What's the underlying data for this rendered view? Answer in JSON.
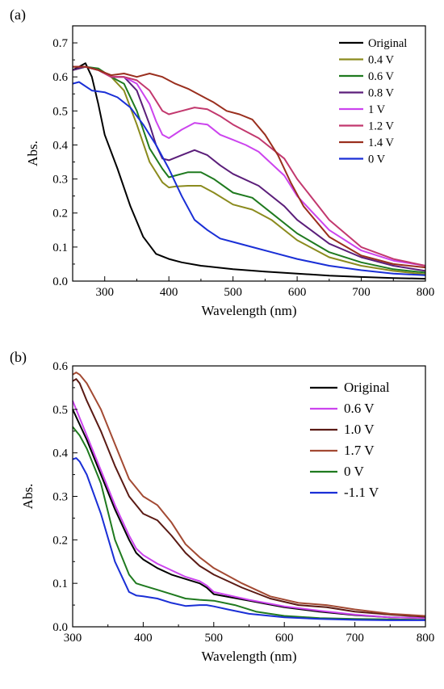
{
  "chart_data": [
    {
      "panel_label": "(a)",
      "type": "line",
      "xlabel": "Wavelength (nm)",
      "ylabel": "Abs.",
      "xlim": [
        250,
        800
      ],
      "ylim": [
        0,
        0.75
      ],
      "xticks": [
        300,
        400,
        500,
        600,
        700,
        800
      ],
      "yticks": [
        0.0,
        0.1,
        0.2,
        0.3,
        0.4,
        0.5,
        0.6,
        0.7
      ],
      "xtick_labels": [
        "300",
        "400",
        "500",
        "600",
        "700",
        "800"
      ],
      "ytick_labels": [
        "0.0",
        "0.1",
        "0.2",
        "0.3",
        "0.4",
        "0.5",
        "0.6",
        "0.7"
      ],
      "grid": false,
      "legend_position": "top-right",
      "series": [
        {
          "name": "Original",
          "color": "#000000",
          "x": [
            250,
            260,
            270,
            280,
            290,
            300,
            320,
            340,
            360,
            380,
            400,
            420,
            450,
            500,
            550,
            600,
            650,
            700,
            750,
            800
          ],
          "y": [
            0.62,
            0.63,
            0.64,
            0.6,
            0.52,
            0.43,
            0.33,
            0.22,
            0.13,
            0.08,
            0.065,
            0.055,
            0.045,
            0.035,
            0.028,
            0.022,
            0.016,
            0.012,
            0.009,
            0.007
          ]
        },
        {
          "name": "0.4 V",
          "color": "#8b8b1e",
          "x": [
            250,
            270,
            290,
            310,
            330,
            350,
            370,
            390,
            400,
            410,
            430,
            450,
            470,
            500,
            530,
            560,
            600,
            650,
            700,
            750,
            800
          ],
          "y": [
            0.62,
            0.63,
            0.62,
            0.6,
            0.56,
            0.46,
            0.35,
            0.29,
            0.275,
            0.278,
            0.28,
            0.28,
            0.26,
            0.225,
            0.21,
            0.18,
            0.12,
            0.07,
            0.045,
            0.03,
            0.02
          ]
        },
        {
          "name": "0.6 V",
          "color": "#1f7a1f",
          "x": [
            250,
            270,
            290,
            310,
            330,
            350,
            370,
            390,
            400,
            410,
            430,
            450,
            470,
            500,
            530,
            560,
            600,
            650,
            700,
            750,
            800
          ],
          "y": [
            0.62,
            0.63,
            0.625,
            0.6,
            0.58,
            0.5,
            0.39,
            0.33,
            0.305,
            0.31,
            0.32,
            0.32,
            0.3,
            0.26,
            0.245,
            0.2,
            0.14,
            0.085,
            0.055,
            0.035,
            0.025
          ]
        },
        {
          "name": "0.8 V",
          "color": "#5b1e7a",
          "x": [
            250,
            270,
            290,
            310,
            330,
            350,
            370,
            380,
            390,
            400,
            420,
            440,
            460,
            480,
            500,
            540,
            580,
            600,
            650,
            700,
            750,
            800
          ],
          "y": [
            0.62,
            0.63,
            0.62,
            0.6,
            0.6,
            0.56,
            0.46,
            0.4,
            0.36,
            0.355,
            0.37,
            0.385,
            0.37,
            0.34,
            0.315,
            0.28,
            0.22,
            0.18,
            0.11,
            0.07,
            0.045,
            0.03
          ]
        },
        {
          "name": "1 V",
          "color": "#cc44ee",
          "x": [
            250,
            270,
            290,
            310,
            330,
            350,
            370,
            380,
            390,
            400,
            420,
            440,
            460,
            480,
            500,
            520,
            540,
            580,
            600,
            650,
            700,
            750,
            800
          ],
          "y": [
            0.63,
            0.63,
            0.62,
            0.6,
            0.6,
            0.58,
            0.52,
            0.47,
            0.43,
            0.42,
            0.445,
            0.465,
            0.46,
            0.43,
            0.415,
            0.4,
            0.38,
            0.31,
            0.25,
            0.15,
            0.09,
            0.06,
            0.045
          ]
        },
        {
          "name": "1.2 V",
          "color": "#c2386e",
          "x": [
            250,
            270,
            290,
            310,
            330,
            350,
            370,
            380,
            390,
            400,
            420,
            440,
            460,
            480,
            500,
            520,
            540,
            580,
            600,
            650,
            700,
            750,
            800
          ],
          "y": [
            0.63,
            0.63,
            0.62,
            0.6,
            0.6,
            0.59,
            0.56,
            0.53,
            0.5,
            0.49,
            0.5,
            0.51,
            0.505,
            0.485,
            0.46,
            0.44,
            0.42,
            0.36,
            0.3,
            0.18,
            0.1,
            0.065,
            0.045
          ]
        },
        {
          "name": "1.4 V",
          "color": "#9a2f1e",
          "x": [
            250,
            270,
            290,
            310,
            330,
            350,
            370,
            390,
            410,
            430,
            450,
            470,
            490,
            510,
            530,
            550,
            570,
            590,
            610,
            650,
            700,
            750,
            800
          ],
          "y": [
            0.63,
            0.63,
            0.62,
            0.605,
            0.61,
            0.6,
            0.61,
            0.6,
            0.58,
            0.565,
            0.545,
            0.525,
            0.5,
            0.49,
            0.475,
            0.43,
            0.37,
            0.29,
            0.22,
            0.13,
            0.075,
            0.05,
            0.04
          ]
        },
        {
          "name": "0 V",
          "color": "#1a2fd6",
          "x": [
            250,
            260,
            280,
            300,
            320,
            340,
            360,
            380,
            400,
            410,
            420,
            440,
            460,
            480,
            500,
            530,
            560,
            600,
            650,
            700,
            750,
            800
          ],
          "y": [
            0.58,
            0.585,
            0.56,
            0.555,
            0.54,
            0.51,
            0.46,
            0.4,
            0.33,
            0.29,
            0.25,
            0.18,
            0.15,
            0.125,
            0.115,
            0.1,
            0.085,
            0.065,
            0.045,
            0.032,
            0.022,
            0.017
          ]
        }
      ]
    },
    {
      "panel_label": "(b)",
      "type": "line",
      "xlabel": "Wavelength (nm)",
      "ylabel": "Abs.",
      "xlim": [
        300,
        800
      ],
      "ylim": [
        0,
        0.6
      ],
      "xticks": [
        300,
        400,
        500,
        600,
        700,
        800
      ],
      "yticks": [
        0.0,
        0.1,
        0.2,
        0.3,
        0.4,
        0.5,
        0.6
      ],
      "xtick_labels": [
        "300",
        "400",
        "500",
        "600",
        "700",
        "800"
      ],
      "ytick_labels": [
        "0.0",
        "0.1",
        "0.2",
        "0.3",
        "0.4",
        "0.5",
        "0.6"
      ],
      "grid": false,
      "legend_position": "top-right",
      "series": [
        {
          "name": "Original",
          "color": "#000000",
          "x": [
            300,
            320,
            340,
            360,
            380,
            390,
            400,
            420,
            440,
            460,
            480,
            490,
            500,
            550,
            600,
            650,
            700,
            750,
            800
          ],
          "y": [
            0.5,
            0.43,
            0.35,
            0.27,
            0.2,
            0.17,
            0.155,
            0.135,
            0.12,
            0.11,
            0.1,
            0.09,
            0.075,
            0.06,
            0.045,
            0.035,
            0.027,
            0.022,
            0.02
          ]
        },
        {
          "name": "0.6 V",
          "color": "#cc44ee",
          "x": [
            300,
            320,
            340,
            360,
            380,
            390,
            400,
            420,
            440,
            460,
            480,
            490,
            500,
            550,
            600,
            650,
            700,
            750,
            800
          ],
          "y": [
            0.52,
            0.44,
            0.36,
            0.28,
            0.21,
            0.18,
            0.165,
            0.145,
            0.13,
            0.115,
            0.105,
            0.095,
            0.08,
            0.062,
            0.047,
            0.037,
            0.028,
            0.022,
            0.02
          ]
        },
        {
          "name": "1.0 V",
          "color": "#5a1a14",
          "x": [
            300,
            305,
            310,
            320,
            340,
            360,
            380,
            400,
            420,
            440,
            460,
            480,
            500,
            540,
            580,
            620,
            660,
            700,
            750,
            800
          ],
          "y": [
            0.565,
            0.57,
            0.56,
            0.52,
            0.45,
            0.37,
            0.3,
            0.26,
            0.245,
            0.21,
            0.17,
            0.14,
            0.12,
            0.09,
            0.065,
            0.05,
            0.045,
            0.035,
            0.028,
            0.023
          ]
        },
        {
          "name": "1.7 V",
          "color": "#a34a33",
          "x": [
            300,
            305,
            310,
            320,
            340,
            360,
            380,
            400,
            420,
            440,
            460,
            480,
            500,
            540,
            580,
            620,
            660,
            700,
            750,
            800
          ],
          "y": [
            0.58,
            0.585,
            0.58,
            0.56,
            0.5,
            0.42,
            0.34,
            0.3,
            0.28,
            0.24,
            0.19,
            0.16,
            0.135,
            0.1,
            0.07,
            0.055,
            0.05,
            0.04,
            0.03,
            0.025
          ]
        },
        {
          "name": "0 V",
          "color": "#1f7a1f",
          "x": [
            300,
            310,
            320,
            340,
            360,
            380,
            390,
            400,
            420,
            440,
            460,
            480,
            500,
            530,
            560,
            600,
            650,
            700,
            750,
            800
          ],
          "y": [
            0.46,
            0.44,
            0.41,
            0.33,
            0.2,
            0.12,
            0.1,
            0.095,
            0.085,
            0.075,
            0.065,
            0.062,
            0.06,
            0.05,
            0.035,
            0.025,
            0.02,
            0.018,
            0.017,
            0.016
          ]
        },
        {
          "name": "-1.1 V",
          "color": "#1a2fd6",
          "x": [
            300,
            305,
            310,
            320,
            340,
            360,
            380,
            390,
            400,
            420,
            440,
            460,
            480,
            490,
            500,
            520,
            550,
            600,
            650,
            700,
            750,
            800
          ],
          "y": [
            0.385,
            0.388,
            0.38,
            0.35,
            0.26,
            0.15,
            0.08,
            0.072,
            0.07,
            0.065,
            0.055,
            0.048,
            0.05,
            0.05,
            0.047,
            0.04,
            0.03,
            0.022,
            0.018,
            0.016,
            0.015,
            0.015
          ]
        }
      ]
    }
  ]
}
